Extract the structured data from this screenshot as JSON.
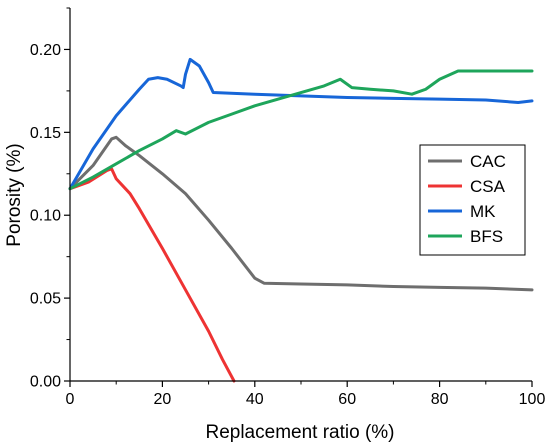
{
  "chart_data": {
    "type": "line",
    "title": "",
    "xlabel": "Replacement ratio (%)",
    "ylabel": "Porosity (%)",
    "xlim": [
      0,
      100
    ],
    "ylim": [
      0,
      0.225
    ],
    "xticks": [
      0,
      20,
      40,
      60,
      80,
      100
    ],
    "xtick_labels": [
      "0",
      "20",
      "40",
      "60",
      "80",
      "100"
    ],
    "yticks": [
      0.0,
      0.05,
      0.1,
      0.15,
      0.2
    ],
    "ytick_labels": [
      "0.00",
      "0.05",
      "0.10",
      "0.15",
      "0.20"
    ],
    "grid": false,
    "legend_position": "right",
    "series": [
      {
        "name": "CAC",
        "color": "#6e6e6e",
        "points": [
          [
            0,
            0.116
          ],
          [
            5,
            0.13
          ],
          [
            9,
            0.146
          ],
          [
            10,
            0.147
          ],
          [
            12,
            0.142
          ],
          [
            15,
            0.136
          ],
          [
            20,
            0.125
          ],
          [
            25,
            0.113
          ],
          [
            30,
            0.097
          ],
          [
            35,
            0.08
          ],
          [
            40,
            0.062
          ],
          [
            42,
            0.059
          ],
          [
            50,
            0.0585
          ],
          [
            60,
            0.058
          ],
          [
            70,
            0.057
          ],
          [
            80,
            0.0565
          ],
          [
            90,
            0.056
          ],
          [
            100,
            0.055
          ]
        ]
      },
      {
        "name": "CSA",
        "color": "#ee3333",
        "points": [
          [
            0,
            0.116
          ],
          [
            4,
            0.12
          ],
          [
            8,
            0.127
          ],
          [
            9,
            0.128
          ],
          [
            10,
            0.122
          ],
          [
            12,
            0.116
          ],
          [
            13,
            0.113
          ],
          [
            15,
            0.104
          ],
          [
            20,
            0.08
          ],
          [
            25,
            0.055
          ],
          [
            30,
            0.03
          ],
          [
            33,
            0.013
          ],
          [
            35.5,
            0
          ]
        ]
      },
      {
        "name": "MK",
        "color": "#1766d8",
        "points": [
          [
            0,
            0.116
          ],
          [
            5,
            0.14
          ],
          [
            10,
            0.16
          ],
          [
            15,
            0.176
          ],
          [
            17,
            0.182
          ],
          [
            19,
            0.183
          ],
          [
            21,
            0.182
          ],
          [
            24,
            0.178
          ],
          [
            24.5,
            0.177
          ],
          [
            25,
            0.185
          ],
          [
            26,
            0.194
          ],
          [
            28,
            0.19
          ],
          [
            30,
            0.18
          ],
          [
            31,
            0.174
          ],
          [
            40,
            0.173
          ],
          [
            50,
            0.172
          ],
          [
            60,
            0.171
          ],
          [
            70,
            0.1705
          ],
          [
            80,
            0.17
          ],
          [
            90,
            0.1695
          ],
          [
            97,
            0.168
          ],
          [
            100,
            0.169
          ]
        ]
      },
      {
        "name": "BFS",
        "color": "#1ea55b",
        "points": [
          [
            0,
            0.116
          ],
          [
            5,
            0.123
          ],
          [
            10,
            0.131
          ],
          [
            15,
            0.139
          ],
          [
            20,
            0.146
          ],
          [
            23,
            0.151
          ],
          [
            25,
            0.149
          ],
          [
            30,
            0.156
          ],
          [
            35,
            0.161
          ],
          [
            40,
            0.166
          ],
          [
            45,
            0.17
          ],
          [
            50,
            0.174
          ],
          [
            55,
            0.178
          ],
          [
            58.5,
            0.182
          ],
          [
            61,
            0.177
          ],
          [
            65,
            0.176
          ],
          [
            70,
            0.175
          ],
          [
            74,
            0.173
          ],
          [
            77,
            0.176
          ],
          [
            80,
            0.182
          ],
          [
            84,
            0.187
          ],
          [
            90,
            0.187
          ],
          [
            95,
            0.187
          ],
          [
            100,
            0.187
          ]
        ]
      }
    ]
  }
}
